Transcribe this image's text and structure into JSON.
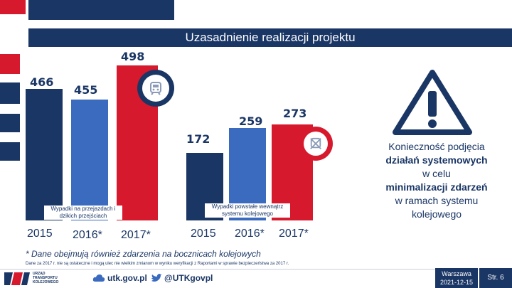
{
  "title": "Uzasadnienie realizacji projektu",
  "values": {
    "v2015a": "466",
    "v2016a": "455",
    "v2017a": "498",
    "v2015b": "172",
    "v2016b": "259",
    "v2017b": "273"
  },
  "labels": {
    "group1": "Wypadki na przejazdach i dzikich przejściach",
    "group2": "Wypadki powstałe wewnątrz systemu kolejowego"
  },
  "years": {
    "g1_2015": "2015",
    "g1_2016": "2016*",
    "g1_2017": "2017*",
    "g2_2015": "2015",
    "g2_2016": "2016*",
    "g2_2017": "2017*"
  },
  "side": {
    "line1": "Konieczność podjęcia",
    "line2": "działań systemowych",
    "line3": "w celu",
    "line4": "minimalizacji zdarzeń",
    "line5": "w ramach systemu",
    "line6": "kolejowego"
  },
  "footnote": "* Dane obejmują również zdarzenia na bocznicach kolejowych",
  "tiny_note": "Dane za 2017 r. nie są ostateczne i mogą ulec nie wielkim zmianom w wyniku weryfikacji z Raportami w sprawie bezpieczeństwa za 2017 r.",
  "footer": {
    "logo_text": "URZĄD TRANSPORTU KOLEJOWEGO",
    "website": "utk.gov.pl",
    "twitter": "@UTKgovpl",
    "date_city": "Warszawa",
    "date": "2021-12-15",
    "page": "Str. 6"
  },
  "colors": {
    "navy": "#1a3665",
    "red": "#d7192d",
    "blue": "#3a6bbf"
  }
}
